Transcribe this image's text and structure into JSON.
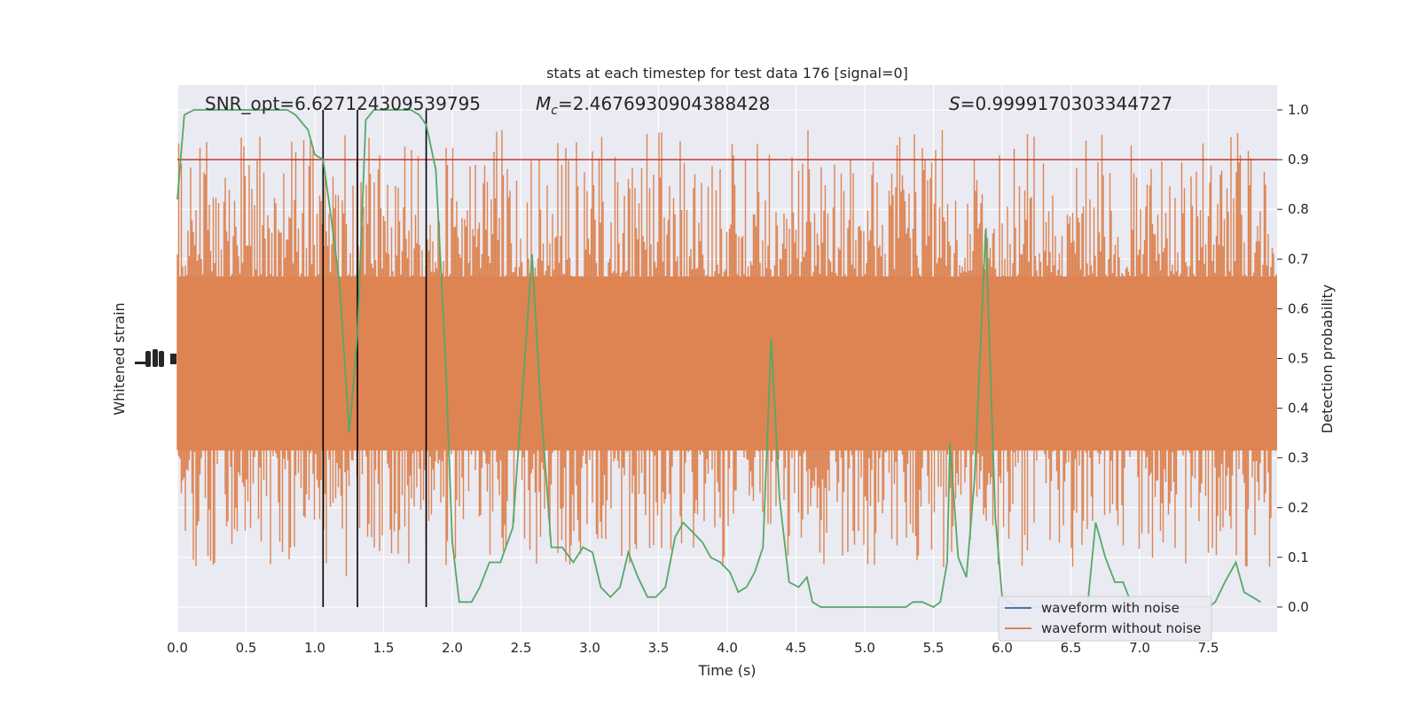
{
  "chart_data": {
    "type": "line",
    "title": "stats at each timestep for test data 176 [signal=0]",
    "xlabel": "Time (s)",
    "ylabel_left": "Whitened strain",
    "ylabel_right": "Detection probability",
    "xlim": [
      0.0,
      8.0
    ],
    "ylim_right": [
      -0.05,
      1.05
    ],
    "x_ticks": [
      "0.0",
      "0.5",
      "1.0",
      "1.5",
      "2.0",
      "2.5",
      "3.0",
      "3.5",
      "4.0",
      "4.5",
      "5.0",
      "5.5",
      "6.0",
      "6.5",
      "7.0",
      "7.5"
    ],
    "y_ticks_right": [
      "0.0",
      "0.1",
      "0.2",
      "0.3",
      "0.4",
      "0.5",
      "0.6",
      "0.7",
      "0.8",
      "0.9",
      "1.0"
    ],
    "grid": true,
    "background": "#eaeaf2",
    "annotations": {
      "snr": "SNR_opt=6.627124309539795",
      "mc_symbol": "M",
      "mc_sub": "c",
      "mc_value": "=2.4676930904388428",
      "s_symbol": "S",
      "s_value": "=0.9999170303344727"
    },
    "threshold": {
      "y": 0.9,
      "color": "#c0392b"
    },
    "vlines": [
      1.06,
      1.31,
      1.81
    ],
    "legend": {
      "placement": "lower-right",
      "entries": [
        {
          "label": "waveform with noise",
          "color": "#4c72b0"
        },
        {
          "label": "waveform without noise",
          "color": "#dd8452"
        }
      ]
    },
    "strain_series": {
      "name": "waveform without noise",
      "color": "#dd8452",
      "note_range_right_axis": [
        0.0,
        1.0
      ]
    },
    "probability_series": {
      "color": "#55a868",
      "x": [
        0.0,
        0.05,
        0.12,
        0.2,
        0.3,
        0.4,
        0.5,
        0.6,
        0.7,
        0.8,
        0.86,
        0.95,
        1.0,
        1.06,
        1.12,
        1.18,
        1.25,
        1.31,
        1.37,
        1.43,
        1.5,
        1.6,
        1.7,
        1.76,
        1.81,
        1.88,
        1.95,
        2.0,
        2.05,
        2.08,
        2.14,
        2.2,
        2.27,
        2.35,
        2.44,
        2.52,
        2.58,
        2.64,
        2.72,
        2.8,
        2.88,
        2.95,
        3.02,
        3.08,
        3.15,
        3.22,
        3.28,
        3.35,
        3.42,
        3.48,
        3.55,
        3.62,
        3.68,
        3.75,
        3.82,
        3.88,
        3.95,
        4.02,
        4.08,
        4.14,
        4.2,
        4.26,
        4.32,
        4.38,
        4.45,
        4.52,
        4.58,
        4.62,
        4.68,
        4.74,
        4.8,
        4.9,
        5.0,
        5.1,
        5.2,
        5.3,
        5.35,
        5.42,
        5.5,
        5.55,
        5.6,
        5.62,
        5.68,
        5.74,
        5.8,
        5.88,
        5.95,
        6.0,
        6.05,
        6.1,
        6.2,
        6.3,
        6.4,
        6.5,
        6.58,
        6.62,
        6.68,
        6.75,
        6.82,
        6.88,
        6.95,
        7.0,
        7.1,
        7.2,
        7.3,
        7.4,
        7.5,
        7.55,
        7.62,
        7.7,
        7.76,
        7.82,
        7.88
      ],
      "y": [
        0.82,
        0.99,
        1.0,
        1.0,
        1.0,
        1.0,
        1.0,
        1.0,
        1.0,
        1.0,
        0.99,
        0.96,
        0.91,
        0.9,
        0.78,
        0.65,
        0.35,
        0.55,
        0.98,
        1.0,
        1.0,
        1.0,
        1.0,
        0.99,
        0.97,
        0.88,
        0.5,
        0.13,
        0.01,
        0.01,
        0.01,
        0.04,
        0.09,
        0.09,
        0.16,
        0.47,
        0.71,
        0.42,
        0.12,
        0.12,
        0.09,
        0.12,
        0.11,
        0.04,
        0.02,
        0.04,
        0.11,
        0.06,
        0.02,
        0.02,
        0.04,
        0.14,
        0.17,
        0.15,
        0.13,
        0.1,
        0.09,
        0.07,
        0.03,
        0.04,
        0.07,
        0.12,
        0.54,
        0.22,
        0.05,
        0.04,
        0.06,
        0.01,
        0.0,
        0.0,
        0.0,
        0.0,
        0.0,
        0.0,
        0.0,
        0.0,
        0.01,
        0.01,
        0.0,
        0.01,
        0.09,
        0.33,
        0.1,
        0.06,
        0.26,
        0.76,
        0.18,
        0.02,
        0.01,
        0.0,
        0.0,
        0.0,
        0.0,
        0.0,
        0.0,
        0.0,
        0.17,
        0.1,
        0.05,
        0.05,
        0.0,
        0.0,
        0.0,
        0.0,
        0.0,
        0.0,
        0.0,
        0.01,
        0.05,
        0.09,
        0.03,
        0.02,
        0.01
      ]
    }
  }
}
